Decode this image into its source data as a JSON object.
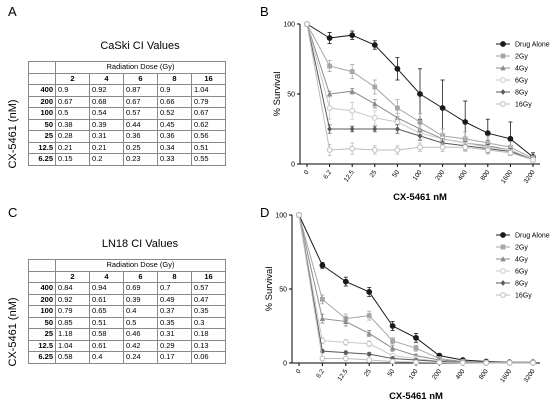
{
  "panels": {
    "A": "A",
    "B": "B",
    "C": "C",
    "D": "D"
  },
  "tables": [
    {
      "title": "CaSki CI Values",
      "dose_header": "Radiation Dose (Gy)",
      "ylabel": "CX-5461 (nM)",
      "columns": [
        "2",
        "4",
        "6",
        "8",
        "16"
      ],
      "rows": [
        {
          "label": "400",
          "values": [
            "0.9",
            "0.92",
            "0.87",
            "0.9",
            "1.04"
          ]
        },
        {
          "label": "200",
          "values": [
            "0.67",
            "0.68",
            "0.67",
            "0.66",
            "0.79"
          ]
        },
        {
          "label": "100",
          "values": [
            "0.5",
            "0.54",
            "0.57",
            "0.52",
            "0.67"
          ]
        },
        {
          "label": "50",
          "values": [
            "0.38",
            "0.39",
            "0.44",
            "0.45",
            "0.62"
          ]
        },
        {
          "label": "25",
          "values": [
            "0.28",
            "0.31",
            "0.36",
            "0.36",
            "0.56"
          ]
        },
        {
          "label": "12.5",
          "values": [
            "0.21",
            "0.21",
            "0.25",
            "0.34",
            "0.51"
          ]
        },
        {
          "label": "6.25",
          "values": [
            "0.15",
            "0.2",
            "0.23",
            "0.33",
            "0.55"
          ]
        }
      ]
    },
    {
      "title": "LN18 CI Values",
      "dose_header": "Radiation Dose (Gy)",
      "ylabel": "CX-5461 (nM)",
      "columns": [
        "2",
        "4",
        "6",
        "8",
        "16"
      ],
      "rows": [
        {
          "label": "400",
          "values": [
            "0.84",
            "0.94",
            "0.69",
            "0.7",
            "0.57"
          ]
        },
        {
          "label": "200",
          "values": [
            "0.92",
            "0.61",
            "0.39",
            "0.49",
            "0.47"
          ]
        },
        {
          "label": "100",
          "values": [
            "0.79",
            "0.65",
            "0.4",
            "0.37",
            "0.35"
          ]
        },
        {
          "label": "50",
          "values": [
            "0.85",
            "0.51",
            "0.5",
            "0.35",
            "0.3"
          ]
        },
        {
          "label": "25",
          "values": [
            "1.18",
            "0.58",
            "0.46",
            "0.31",
            "0.18"
          ]
        },
        {
          "label": "12.5",
          "values": [
            "1.04",
            "0.61",
            "0.42",
            "0.29",
            "0.13"
          ]
        },
        {
          "label": "6.25",
          "values": [
            "0.58",
            "0.4",
            "0.24",
            "0.17",
            "0.06"
          ]
        }
      ]
    }
  ],
  "chart_data": [
    {
      "type": "line",
      "panel": "B",
      "xlabel": "CX-5461 nM",
      "ylabel": "% Survival",
      "categories": [
        "0",
        "6.2",
        "12.5",
        "25",
        "50",
        "100",
        "200",
        "400",
        "800",
        "1600",
        "3200"
      ],
      "ylim": [
        0,
        100
      ],
      "yticks": [
        0,
        50,
        100
      ],
      "legend_position": "top-right",
      "series": [
        {
          "name": "Drug Alone",
          "marker": "circle",
          "color": "#1a1a1a",
          "values": [
            100,
            90,
            92,
            85,
            68,
            50,
            40,
            30,
            22,
            18,
            5
          ],
          "errors": [
            0,
            4,
            3,
            3,
            8,
            18,
            20,
            15,
            10,
            12,
            3
          ]
        },
        {
          "name": "2Gy",
          "marker": "square",
          "color": "#a6a6a6",
          "values": [
            100,
            70,
            66,
            55,
            40,
            30,
            20,
            18,
            15,
            12,
            4
          ],
          "errors": [
            0,
            4,
            5,
            5,
            6,
            6,
            5,
            5,
            5,
            4,
            2
          ]
        },
        {
          "name": "4Gy",
          "marker": "triangle",
          "color": "#8c8c8c",
          "values": [
            100,
            50,
            52,
            43,
            33,
            25,
            18,
            15,
            13,
            10,
            3
          ],
          "errors": [
            0,
            2,
            2,
            3,
            3,
            4,
            4,
            4,
            4,
            3,
            1
          ]
        },
        {
          "name": "6Gy",
          "marker": "circle-open",
          "color": "#c8c8c8",
          "values": [
            100,
            40,
            38,
            33,
            30,
            22,
            18,
            15,
            12,
            10,
            3
          ],
          "errors": [
            0,
            8,
            6,
            5,
            6,
            5,
            4,
            4,
            4,
            3,
            1
          ]
        },
        {
          "name": "8Gy",
          "marker": "diamond",
          "color": "#595959",
          "values": [
            100,
            25,
            25,
            25,
            25,
            20,
            15,
            13,
            11,
            9,
            3
          ],
          "errors": [
            0,
            3,
            2,
            2,
            3,
            3,
            3,
            3,
            3,
            2,
            1
          ]
        },
        {
          "name": "16Gy",
          "marker": "circle-open",
          "color": "#bdbdbd",
          "values": [
            100,
            10,
            11,
            10,
            10,
            12,
            12,
            12,
            10,
            8,
            3
          ],
          "errors": [
            0,
            4,
            4,
            3,
            3,
            3,
            3,
            3,
            3,
            2,
            1
          ]
        }
      ]
    },
    {
      "type": "line",
      "panel": "D",
      "xlabel": "CX-5461 nM",
      "ylabel": "% Survival",
      "categories": [
        "0",
        "6.2",
        "12.5",
        "25",
        "50",
        "100",
        "200",
        "400",
        "800",
        "1600",
        "3200"
      ],
      "ylim": [
        0,
        100
      ],
      "yticks": [
        0,
        50,
        100
      ],
      "legend_position": "top-right",
      "series": [
        {
          "name": "Drug Alone",
          "marker": "circle",
          "color": "#1a1a1a",
          "values": [
            100,
            66,
            55,
            48,
            25,
            17,
            5,
            2,
            1,
            0.5,
            0.5
          ],
          "errors": [
            0,
            2,
            3,
            3,
            3,
            3,
            1,
            1,
            0.5,
            0.3,
            0.3
          ]
        },
        {
          "name": "2Gy",
          "marker": "square",
          "color": "#a6a6a6",
          "values": [
            100,
            43,
            30,
            32,
            15,
            10,
            3,
            1,
            0.5,
            0.3,
            0.3
          ],
          "errors": [
            0,
            3,
            3,
            3,
            2,
            2,
            1,
            0.5,
            0.3,
            0.2,
            0.2
          ]
        },
        {
          "name": "4Gy",
          "marker": "triangle",
          "color": "#8c8c8c",
          "values": [
            100,
            30,
            28,
            20,
            10,
            5,
            2,
            1,
            0.3,
            0.2,
            0.2
          ],
          "errors": [
            0,
            3,
            3,
            2,
            2,
            1,
            1,
            0.5,
            0.2,
            0.1,
            0.1
          ]
        },
        {
          "name": "6Gy",
          "marker": "circle-open",
          "color": "#c8c8c8",
          "values": [
            100,
            15,
            14,
            13,
            5,
            3,
            1,
            0.5,
            0.2,
            0.1,
            0.1
          ],
          "errors": [
            0,
            2,
            2,
            2,
            1,
            1,
            0.5,
            0.3,
            0.1,
            0.1,
            0.1
          ]
        },
        {
          "name": "8Gy",
          "marker": "diamond",
          "color": "#595959",
          "values": [
            100,
            8,
            7,
            6,
            3,
            2,
            1,
            0.3,
            0.1,
            0.1,
            0.1
          ],
          "errors": [
            0,
            1,
            1,
            1,
            1,
            0.5,
            0.3,
            0.1,
            0.1,
            0.1,
            0.1
          ]
        },
        {
          "name": "16Gy",
          "marker": "circle-open",
          "color": "#bdbdbd",
          "values": [
            100,
            3,
            3,
            2,
            1,
            0.5,
            0.3,
            0.1,
            0.1,
            0.1,
            0.1
          ],
          "errors": [
            0,
            1,
            1,
            0.5,
            0.3,
            0.2,
            0.1,
            0.1,
            0.1,
            0.1,
            0.1
          ]
        }
      ]
    }
  ]
}
